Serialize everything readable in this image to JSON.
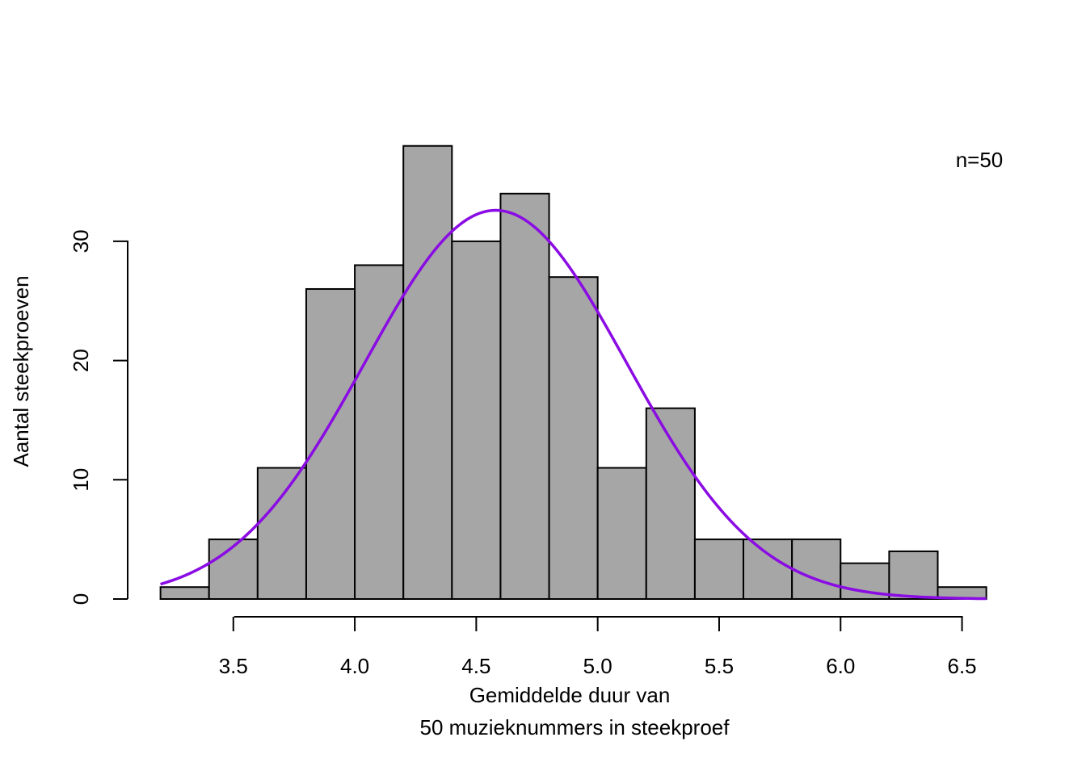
{
  "chart_data": {
    "type": "bar",
    "subtype": "histogram",
    "bin_edges": [
      3.2,
      3.4,
      3.6,
      3.8,
      4.0,
      4.2,
      4.4,
      4.6,
      4.8,
      5.0,
      5.2,
      5.4,
      5.6,
      5.8,
      6.0,
      6.2,
      6.4,
      6.6
    ],
    "values": [
      1,
      5,
      11,
      26,
      28,
      38,
      30,
      34,
      27,
      11,
      16,
      5,
      5,
      5,
      3,
      4,
      1
    ],
    "xlabel": [
      "Gemiddelde duur van",
      "50 muzieknummers in steekproef"
    ],
    "ylabel": "Aantal steekproeven",
    "xticks": [
      "3.5",
      "4.0",
      "4.5",
      "5.0",
      "5.5",
      "6.0",
      "6.5"
    ],
    "yticks": [
      "0",
      "10",
      "20",
      "30"
    ],
    "xlim": [
      3.2,
      6.6
    ],
    "ylim": [
      0,
      38
    ],
    "annotation": "n=50",
    "curve": {
      "type": "normal density overlay",
      "mean": 4.58,
      "sd": 0.54,
      "peak": 32.6,
      "color": "#8a0be3"
    },
    "bar_color": "#a6a6a6",
    "grid": false,
    "legend": "none"
  }
}
